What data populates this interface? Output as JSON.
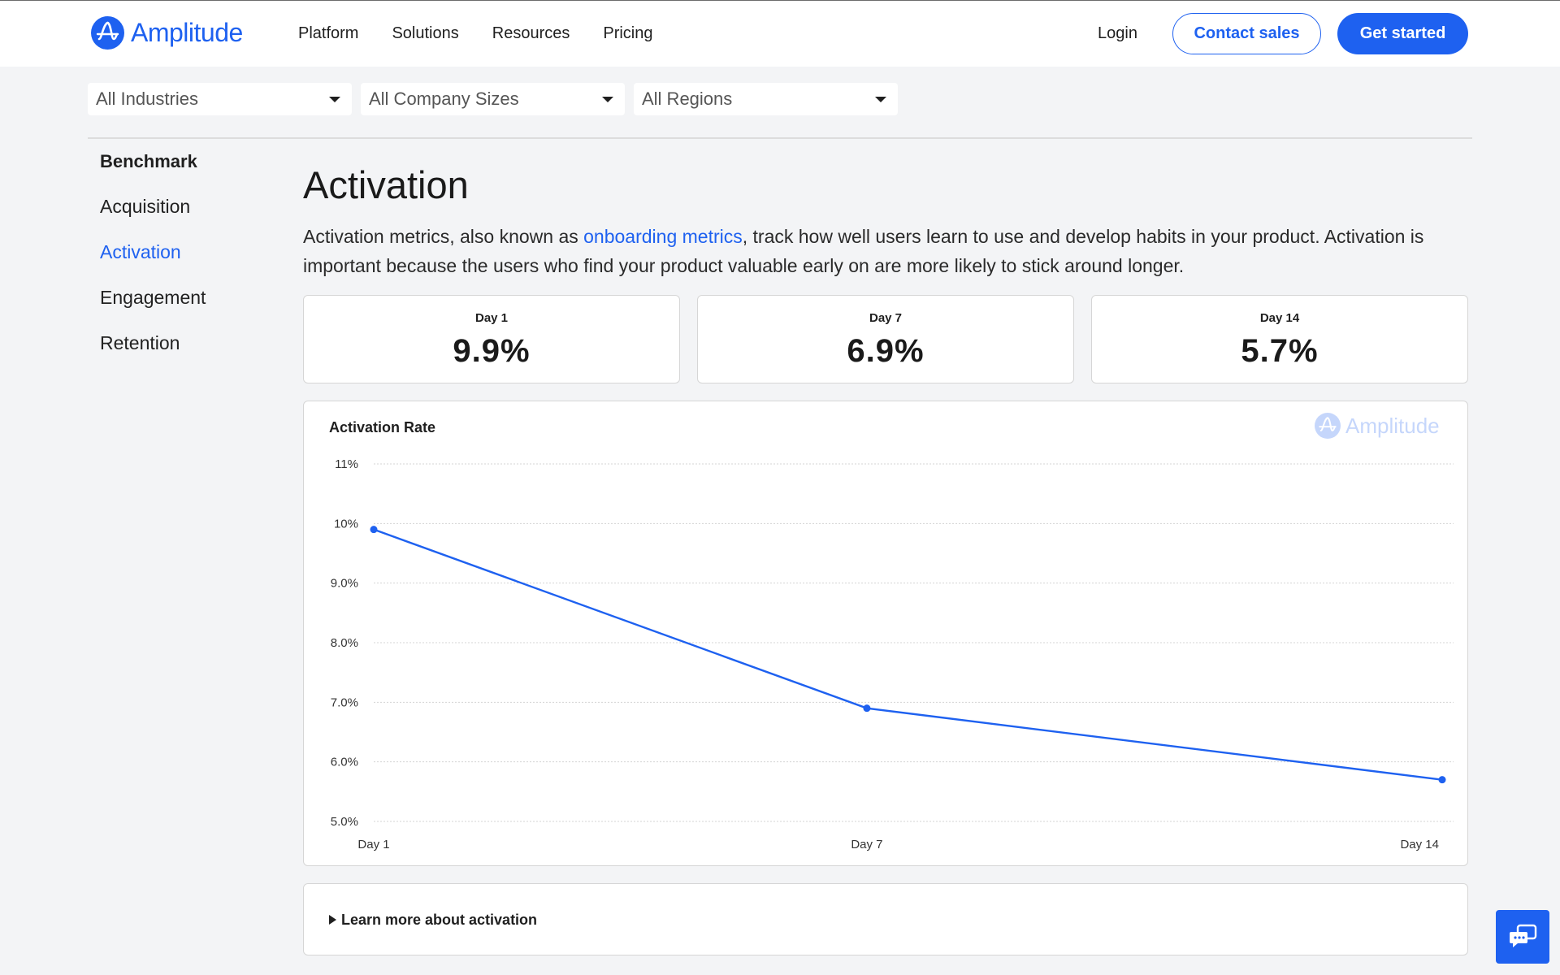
{
  "header": {
    "logo_text": "Amplitude",
    "nav": [
      "Platform",
      "Solutions",
      "Resources",
      "Pricing"
    ],
    "login": "Login",
    "contact_sales": "Contact sales",
    "get_started": "Get started"
  },
  "filters": {
    "industry": "All Industries",
    "company_size": "All Company Sizes",
    "region": "All Regions"
  },
  "sidebar": {
    "heading": "Benchmark",
    "items": [
      "Acquisition",
      "Activation",
      "Engagement",
      "Retention"
    ],
    "active": "Activation"
  },
  "main": {
    "title": "Activation",
    "desc_before": "Activation metrics, also known as ",
    "desc_link": "onboarding metrics",
    "desc_after": ", track how well users learn to use and develop habits in your product. Activation is important because the users who find your product valuable early on are more likely to stick around longer.",
    "stats": [
      {
        "label": "Day 1",
        "value": "9.9%"
      },
      {
        "label": "Day 7",
        "value": "6.9%"
      },
      {
        "label": "Day 14",
        "value": "5.7%"
      }
    ],
    "learn_more": "Learn more about activation"
  },
  "colors": {
    "accent": "#1e61f0",
    "background": "#f3f4f6"
  },
  "chart_data": {
    "type": "line",
    "title": "Activation Rate",
    "watermark": "Amplitude",
    "categories": [
      "Day 1",
      "Day 7",
      "Day 14"
    ],
    "x_positions": [
      1,
      7,
      14
    ],
    "series": [
      {
        "values": [
          9.9,
          6.9,
          5.7
        ]
      }
    ],
    "ylim": [
      5.0,
      11.0
    ],
    "y_ticks": [
      5.0,
      6.0,
      7.0,
      8.0,
      9.0,
      10.0,
      11.0
    ],
    "y_tick_labels": [
      "5.0%",
      "6.0%",
      "7.0%",
      "8.0%",
      "9.0%",
      "10%",
      "11%"
    ],
    "grid": true,
    "legend": "none"
  }
}
